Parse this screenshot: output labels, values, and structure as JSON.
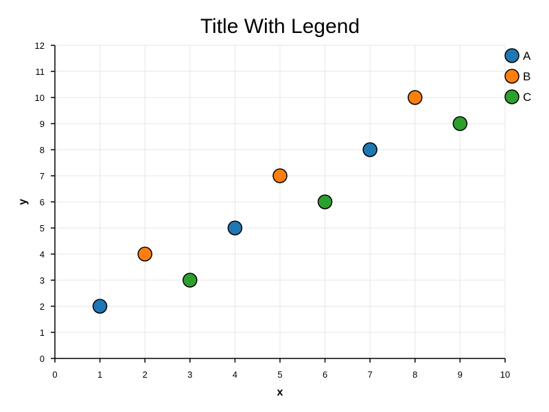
{
  "chart_data": {
    "type": "scatter",
    "title": "Title With Legend",
    "xlabel": "x",
    "ylabel": "y",
    "xlim": [
      0,
      10
    ],
    "ylim": [
      0,
      12
    ],
    "xticks": [
      "0",
      "1",
      "2",
      "3",
      "4",
      "5",
      "6",
      "7",
      "8",
      "9",
      "10"
    ],
    "yticks": [
      "0",
      "1",
      "2",
      "3",
      "4",
      "5",
      "6",
      "7",
      "8",
      "9",
      "10",
      "11",
      "12"
    ],
    "grid": true,
    "legend_position": "top-right",
    "series": [
      {
        "name": "A",
        "color": "#1f77b4",
        "x": [
          1,
          4,
          7
        ],
        "y": [
          2,
          5,
          8
        ]
      },
      {
        "name": "B",
        "color": "#ff7f0e",
        "x": [
          2,
          5,
          8
        ],
        "y": [
          4,
          7,
          10
        ]
      },
      {
        "name": "C",
        "color": "#2ca02c",
        "x": [
          3,
          6,
          9
        ],
        "y": [
          3,
          6,
          9
        ]
      }
    ]
  }
}
